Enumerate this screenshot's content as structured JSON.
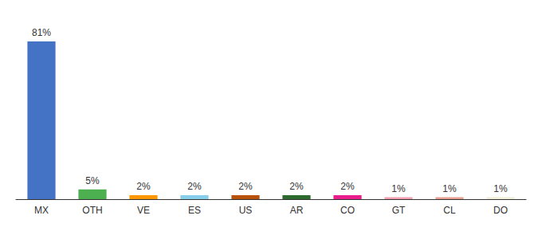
{
  "chart_data": {
    "type": "bar",
    "categories": [
      "MX",
      "OTH",
      "VE",
      "ES",
      "US",
      "AR",
      "CO",
      "GT",
      "CL",
      "DO"
    ],
    "values": [
      81,
      5,
      2,
      2,
      2,
      2,
      2,
      1,
      1,
      1
    ],
    "value_labels": [
      "81%",
      "5%",
      "2%",
      "2%",
      "2%",
      "2%",
      "2%",
      "1%",
      "1%",
      "1%"
    ],
    "colors": [
      "#4472c4",
      "#4caf50",
      "#ff9800",
      "#87ceeb",
      "#b8520a",
      "#2d6a2d",
      "#e91e8c",
      "#f4a0b0",
      "#e8a090",
      "#f0eed8"
    ],
    "ylim": [
      0,
      90
    ],
    "data_labels": true,
    "tick_labels": "x",
    "grid": false
  }
}
